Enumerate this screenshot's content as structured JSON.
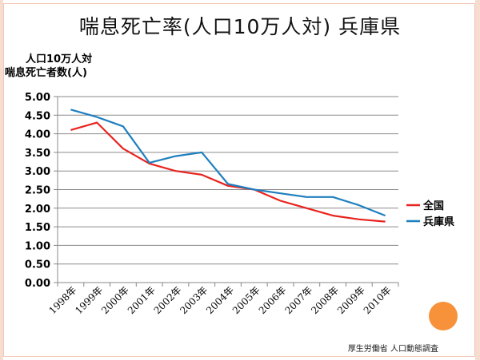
{
  "title": "喘息死亡率(人口10万人対)  兵庫県",
  "source": "厚生労働省  人口動態調査",
  "chart_data": {
    "type": "line",
    "title": "喘息死亡率(人口10万人対)  兵庫県",
    "ylabel_lines": [
      "人口10万人対",
      "喘息死亡者数(人)"
    ],
    "xlabel": "",
    "ylim": [
      0,
      5
    ],
    "yticks": [
      "0.00",
      "0.50",
      "1.00",
      "1.50",
      "2.00",
      "2.50",
      "3.00",
      "3.50",
      "4.00",
      "4.50",
      "5.00"
    ],
    "grid": true,
    "legend_position": "right",
    "categories": [
      "1998年",
      "1999年",
      "2000年",
      "2001年",
      "2002年",
      "2003年",
      "2004年",
      "2005年",
      "2006年",
      "2007年",
      "2008年",
      "2009年",
      "2010年"
    ],
    "series": [
      {
        "name": "全国",
        "color": "#e8231f",
        "values": [
          4.1,
          4.3,
          3.6,
          3.2,
          3.0,
          2.9,
          2.6,
          2.5,
          2.2,
          2.0,
          1.8,
          1.7,
          1.64
        ]
      },
      {
        "name": "兵庫県",
        "color": "#1f7fbf",
        "values": [
          4.65,
          4.45,
          4.2,
          3.22,
          3.4,
          3.5,
          2.65,
          2.5,
          2.4,
          2.3,
          2.3,
          2.08,
          1.8
        ]
      }
    ]
  }
}
